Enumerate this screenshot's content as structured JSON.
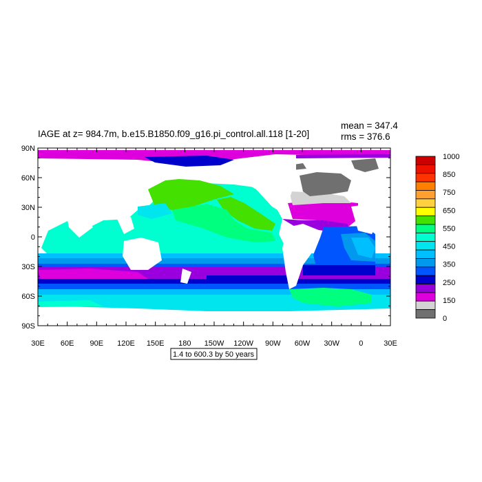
{
  "figure": {
    "title": "IAGE at z= 984.7m, b.e15.B1850.f09_g16.pi_control.all.118 [1-20]",
    "mean_text": "mean = 347.4",
    "rms_text": "rms = 376.6",
    "contour_info": "1.4 to 600.3 by 50 years"
  },
  "lat_labels": [
    "90N",
    "60N",
    "30N",
    "0",
    "30S",
    "60S",
    "90S"
  ],
  "lon_labels": [
    "30E",
    "60E",
    "90E",
    "120E",
    "150E",
    "180",
    "150W",
    "120W",
    "90W",
    "60W",
    "30W",
    "0",
    "30E"
  ],
  "colorbar": {
    "labels": [
      "1000",
      "850",
      "750",
      "650",
      "550",
      "450",
      "350",
      "250",
      "150",
      "0"
    ],
    "colors": [
      "#cc0000",
      "#ee1100",
      "#ff3300",
      "#ff7f00",
      "#ffa030",
      "#ffd040",
      "#ffff00",
      "#44e000",
      "#00ff7f",
      "#00ffd0",
      "#00e5ee",
      "#00bfff",
      "#0099ee",
      "#0055ff",
      "#0000cc",
      "#9900dd",
      "#dd00dd",
      "#d3d3d3",
      "#707070"
    ]
  },
  "colors": {
    "land": "#ffffff",
    "no_data": "#707070",
    "light_gray": "#d3d3d3"
  }
}
